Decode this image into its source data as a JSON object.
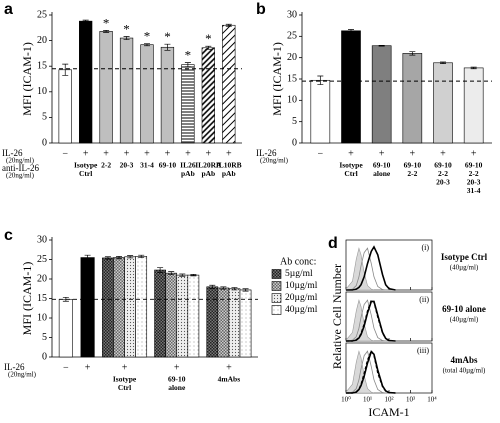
{
  "chart_data": [
    {
      "type": "bar",
      "panel_label": "a",
      "y_label": "MFI (ICAM-1)",
      "ylim": [
        0,
        25
      ],
      "yticks": [
        0,
        5,
        10,
        15,
        20,
        25
      ],
      "reference_line": 14.5,
      "row_labels": [
        {
          "text": "IL-26",
          "sub": "(20ng/ml)"
        },
        {
          "text": "anti-IL-26",
          "sub": "(20ng/ml)"
        }
      ],
      "treatment": [
        "−",
        "+",
        "+",
        "+",
        "+",
        "+",
        "+",
        "+",
        "+"
      ],
      "categories": [
        null,
        [
          "Isotype",
          "Ctrl"
        ],
        [
          "2-2"
        ],
        [
          "20-3"
        ],
        [
          "31-4"
        ],
        [
          "69-10"
        ],
        [
          "IL26",
          "pAb"
        ],
        [
          "IL20RA",
          "pAb"
        ],
        [
          "IL10RB",
          "pAb"
        ]
      ],
      "values": [
        14.3,
        23.8,
        21.8,
        20.5,
        19.2,
        18.7,
        15.3,
        18.6,
        23.0
      ],
      "errors": [
        1.1,
        0.2,
        0.2,
        0.3,
        0.2,
        0.6,
        0.4,
        0.3,
        0.2
      ],
      "markers": [
        null,
        null,
        "*",
        "*",
        "*",
        "*",
        "*",
        "*",
        null
      ],
      "fills": [
        "#ffffff",
        "#000000",
        "#bfbfbf",
        "#bfbfbf",
        "#bfbfbf",
        "#bfbfbf",
        "hstripe",
        "diag",
        "diag-wide"
      ]
    },
    {
      "type": "bar",
      "panel_label": "b",
      "y_label": "MFI (ICAM-1)",
      "ylim": [
        0,
        30
      ],
      "yticks": [
        0,
        5,
        10,
        15,
        20,
        25,
        30
      ],
      "reference_line": 14.5,
      "row_labels": [
        {
          "text": "IL-26",
          "sub": "(20ng/ml)"
        }
      ],
      "treatment": [
        "−",
        "+",
        "+",
        "+",
        "+",
        "+"
      ],
      "categories": [
        null,
        [
          "Isotype",
          "Ctrl"
        ],
        [
          "69-10",
          "alone"
        ],
        [
          "69-10",
          "2-2"
        ],
        [
          "69-10",
          "2-2",
          "20-3"
        ],
        [
          "69-10",
          "2-2",
          "20-3",
          "31-4"
        ]
      ],
      "values": [
        14.7,
        26.3,
        22.8,
        21.0,
        18.8,
        17.6
      ],
      "errors": [
        1.0,
        0.3,
        0.1,
        0.4,
        0.2,
        0.2
      ],
      "fills": [
        "#ffffff",
        "#000000",
        "#7f7f7f",
        "#a6a6a6",
        "#d0d0d0",
        "#ececec"
      ]
    },
    {
      "type": "bar",
      "panel_label": "c",
      "y_label": "MFI (ICAM-1)",
      "ylim": [
        0,
        30
      ],
      "yticks": [
        0,
        5,
        10,
        15,
        20,
        25,
        30
      ],
      "reference_line": 14.8,
      "row_labels": [
        {
          "text": "IL-26",
          "sub": "(20ng/ml)"
        }
      ],
      "treatment": [
        "−",
        "+",
        "+",
        "+",
        "+"
      ],
      "categories": [
        null,
        null,
        [
          "Isotype",
          "Ctrl"
        ],
        [
          "69-10",
          "alone"
        ],
        [
          "4mAbs"
        ]
      ],
      "values": [
        14.8,
        25.5,
        null,
        null,
        null
      ],
      "errors": [
        0.5,
        0.6,
        null,
        null,
        null
      ],
      "fills": [
        "#ffffff",
        "#000000",
        null,
        null,
        null
      ],
      "legend_title": "Ab conc:",
      "series": [
        {
          "name": "5µg/ml",
          "fill": "check-dense",
          "values": [
            null,
            null,
            25.4,
            22.3,
            18.0
          ],
          "errors": [
            null,
            null,
            0.3,
            0.6,
            0.4
          ]
        },
        {
          "name": "10µg/ml",
          "fill": "check",
          "values": [
            null,
            null,
            25.5,
            21.5,
            17.7
          ],
          "errors": [
            null,
            null,
            0.3,
            0.4,
            0.3
          ]
        },
        {
          "name": "20µg/ml",
          "fill": "dots",
          "values": [
            null,
            null,
            25.7,
            21.0,
            17.5
          ],
          "errors": [
            null,
            null,
            0.3,
            0.3,
            0.3
          ]
        },
        {
          "name": "40µg/ml",
          "fill": "dots-sparse",
          "values": [
            null,
            null,
            25.8,
            21.0,
            17.2
          ],
          "errors": [
            null,
            null,
            0.3,
            0.2,
            0.3
          ]
        }
      ]
    },
    {
      "type": "line",
      "panel_label": "d",
      "y_label": "Relative Cell Number",
      "x_label": "ICAM-1",
      "log_x": true,
      "xlim": [
        1,
        10000
      ],
      "xticks": [
        {
          "value": 1,
          "label": "10⁰"
        },
        {
          "value": 10,
          "label": "10¹"
        },
        {
          "value": 100,
          "label": "10²"
        },
        {
          "value": 1000,
          "label": "10³"
        },
        {
          "value": 10000,
          "label": "10⁴"
        }
      ],
      "ylim": [
        0,
        100
      ],
      "x": [
        1,
        2,
        3,
        4,
        5,
        7,
        10,
        15,
        20,
        30,
        50,
        70,
        100,
        200
      ],
      "panels": [
        {
          "label": "(i)",
          "title": "Isotype Ctrl",
          "subtitle": "(40µg/ml)",
          "series": [
            {
              "style": "filled",
              "values": [
                2,
                20,
                70,
                95,
                80,
                40,
                10,
                2,
                0,
                0,
                0,
                0,
                0,
                0
              ]
            },
            {
              "style": "thin",
              "values": [
                0,
                2,
                10,
                30,
                55,
                85,
                95,
                60,
                30,
                8,
                1,
                0,
                0,
                0
              ]
            },
            {
              "style": "thick",
              "values": [
                0,
                0,
                2,
                6,
                12,
                30,
                60,
                88,
                98,
                80,
                35,
                12,
                3,
                0
              ]
            }
          ]
        },
        {
          "label": "(ii)",
          "title": "69-10 alone",
          "subtitle": "(40µg/ml)",
          "series": [
            {
              "style": "filled",
              "values": [
                2,
                20,
                70,
                95,
                80,
                40,
                10,
                2,
                0,
                0,
                0,
                0,
                0,
                0
              ]
            },
            {
              "style": "thin",
              "values": [
                0,
                2,
                10,
                30,
                55,
                85,
                95,
                60,
                30,
                8,
                1,
                0,
                0,
                0
              ]
            },
            {
              "style": "thick",
              "values": [
                0,
                0,
                2,
                7,
                15,
                35,
                65,
                92,
                92,
                60,
                20,
                6,
                1,
                0
              ]
            },
            {
              "style": "dashed",
              "values": [
                0,
                0,
                3,
                8,
                18,
                40,
                70,
                95,
                90,
                55,
                18,
                6,
                1,
                0
              ]
            }
          ]
        },
        {
          "label": "(iii)",
          "title": "4mAbs",
          "subtitle": "(total 40µg/ml)",
          "series": [
            {
              "style": "filled",
              "values": [
                2,
                20,
                70,
                95,
                80,
                40,
                10,
                2,
                0,
                0,
                0,
                0,
                0,
                0
              ]
            },
            {
              "style": "thin",
              "values": [
                0,
                2,
                10,
                30,
                55,
                85,
                95,
                60,
                30,
                8,
                1,
                0,
                0,
                0
              ]
            },
            {
              "style": "thick",
              "values": [
                0,
                0,
                2,
                8,
                17,
                38,
                68,
                94,
                88,
                52,
                16,
                5,
                1,
                0
              ]
            },
            {
              "style": "dashed",
              "values": [
                0,
                0,
                3,
                9,
                20,
                45,
                75,
                96,
                85,
                45,
                14,
                4,
                1,
                0
              ]
            }
          ]
        }
      ]
    }
  ]
}
